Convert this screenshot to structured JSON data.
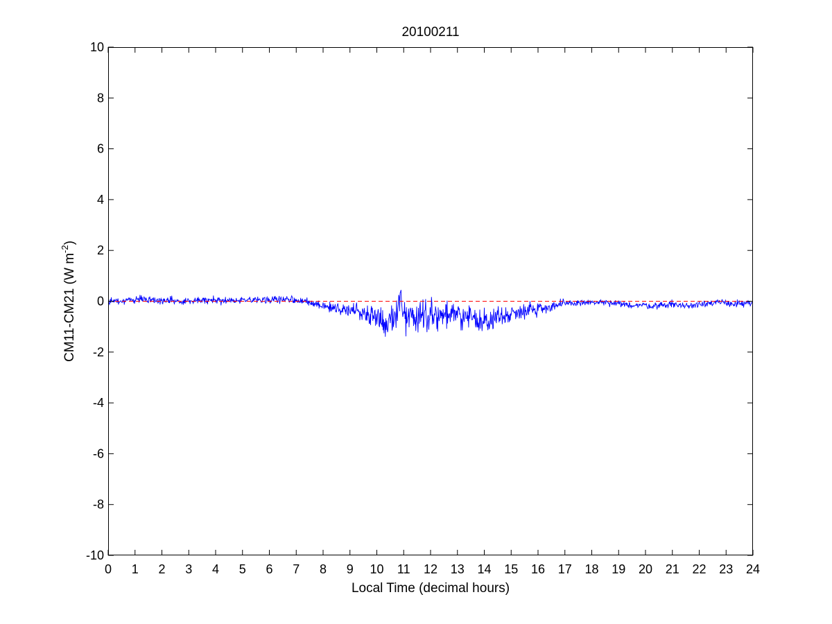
{
  "chart_data": {
    "type": "line",
    "title": "20100211",
    "xlabel": "Local Time (decimal hours)",
    "ylabel": {
      "main": "CM11-CM21 (W m",
      "exponent": "-2",
      "close": ")"
    },
    "xlim": [
      0,
      24
    ],
    "ylim": [
      -10,
      10
    ],
    "xticks": [
      0,
      1,
      2,
      3,
      4,
      5,
      6,
      7,
      8,
      9,
      10,
      11,
      12,
      13,
      14,
      15,
      16,
      17,
      18,
      19,
      20,
      21,
      22,
      23,
      24
    ],
    "yticks": [
      -10,
      -8,
      -6,
      -4,
      -2,
      0,
      2,
      4,
      6,
      8,
      10
    ],
    "grid": false,
    "legend": "none",
    "colors": {
      "series": "#0000ff",
      "reference": "#ff0000",
      "axes": "#000000"
    },
    "reference_line": {
      "y": 0,
      "style": "dashed"
    },
    "series": [
      {
        "x": [
          0.0,
          0.25,
          0.5,
          0.75,
          1.0,
          1.25,
          1.5,
          1.75,
          2.0,
          2.25,
          2.5,
          2.75,
          3.0,
          3.25,
          3.5,
          3.75,
          4.0,
          4.25,
          4.5,
          4.75,
          5.0,
          5.25,
          5.5,
          5.75,
          6.0,
          6.25,
          6.5,
          6.75,
          7.0,
          7.25,
          7.5,
          7.75,
          8.0,
          8.25,
          8.5,
          8.75,
          9.0,
          9.25,
          9.5,
          9.75,
          10.0,
          10.25,
          10.3,
          10.5,
          10.75,
          10.8,
          11.0,
          11.25,
          11.5,
          11.75,
          12.0,
          12.25,
          12.5,
          12.75,
          13.0,
          13.25,
          13.5,
          13.75,
          14.0,
          14.2,
          14.25,
          14.5,
          14.75,
          15.0,
          15.25,
          15.5,
          15.75,
          16.0,
          16.25,
          16.5,
          16.75,
          17.0,
          17.25,
          17.5,
          17.75,
          18.0,
          18.25,
          18.5,
          18.75,
          19.0,
          19.25,
          19.5,
          19.75,
          20.0,
          20.25,
          20.5,
          20.75,
          21.0,
          21.25,
          21.5,
          21.75,
          22.0,
          22.25,
          22.5,
          22.75,
          23.0,
          23.25,
          23.5,
          23.75,
          24.0
        ],
        "y": [
          0.0,
          0.05,
          0.0,
          0.05,
          0.05,
          0.1,
          0.05,
          0.05,
          0.0,
          0.05,
          0.0,
          0.0,
          0.0,
          0.05,
          0.05,
          0.05,
          0.05,
          0.0,
          0.05,
          0.0,
          0.0,
          0.05,
          0.05,
          0.0,
          0.05,
          0.1,
          0.05,
          0.1,
          0.05,
          0.0,
          -0.05,
          -0.15,
          -0.2,
          -0.25,
          -0.3,
          -0.3,
          -0.35,
          -0.4,
          -0.45,
          -0.5,
          -0.6,
          -0.7,
          -1.0,
          -0.7,
          -0.6,
          0.3,
          -0.55,
          -0.6,
          -0.55,
          -0.5,
          -0.5,
          -0.55,
          -0.5,
          -0.55,
          -0.6,
          -0.6,
          -0.65,
          -0.7,
          -0.75,
          -1.0,
          -0.7,
          -0.6,
          -0.55,
          -0.5,
          -0.4,
          -0.35,
          -0.3,
          -0.3,
          -0.25,
          -0.2,
          -0.15,
          -0.1,
          -0.1,
          -0.05,
          -0.05,
          -0.05,
          -0.05,
          -0.05,
          -0.1,
          -0.1,
          -0.15,
          -0.15,
          -0.15,
          -0.15,
          -0.2,
          -0.15,
          -0.15,
          -0.1,
          -0.15,
          -0.2,
          -0.15,
          -0.1,
          -0.05,
          -0.1,
          -0.05,
          -0.05,
          -0.1,
          -0.1,
          -0.1,
          -0.1
        ],
        "noise": [
          0.07,
          0.07,
          0.07,
          0.07,
          0.07,
          0.07,
          0.07,
          0.07,
          0.07,
          0.07,
          0.07,
          0.07,
          0.07,
          0.07,
          0.07,
          0.07,
          0.07,
          0.07,
          0.07,
          0.07,
          0.07,
          0.07,
          0.07,
          0.07,
          0.07,
          0.07,
          0.07,
          0.07,
          0.07,
          0.07,
          0.08,
          0.1,
          0.1,
          0.12,
          0.12,
          0.12,
          0.12,
          0.15,
          0.15,
          0.2,
          0.25,
          0.3,
          0.3,
          0.35,
          0.35,
          0.3,
          0.35,
          0.3,
          0.3,
          0.3,
          0.3,
          0.3,
          0.25,
          0.25,
          0.25,
          0.2,
          0.2,
          0.2,
          0.25,
          0.2,
          0.2,
          0.2,
          0.2,
          0.15,
          0.15,
          0.15,
          0.15,
          0.15,
          0.12,
          0.12,
          0.1,
          0.08,
          0.07,
          0.07,
          0.06,
          0.06,
          0.06,
          0.06,
          0.06,
          0.06,
          0.06,
          0.06,
          0.06,
          0.06,
          0.06,
          0.06,
          0.06,
          0.07,
          0.07,
          0.07,
          0.07,
          0.07,
          0.07,
          0.07,
          0.07,
          0.07,
          0.07,
          0.07,
          0.07,
          0.07
        ]
      }
    ]
  }
}
